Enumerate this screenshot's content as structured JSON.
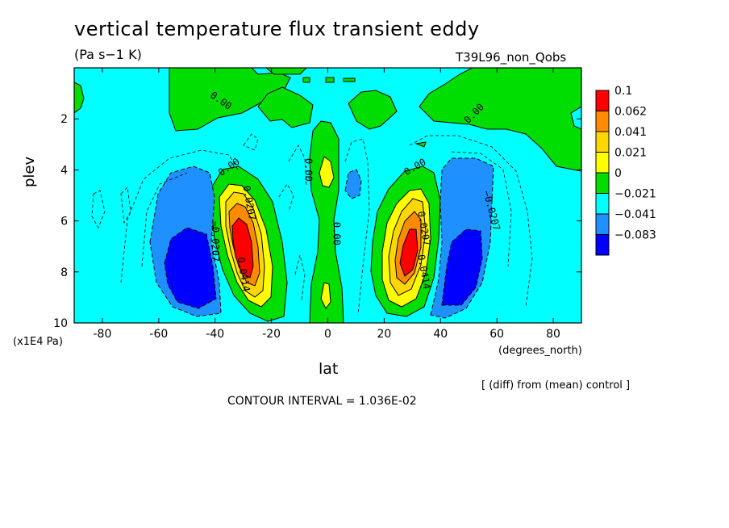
{
  "title": "vertical temperature flux transient eddy",
  "units": "(Pa s−1 K)",
  "run_id": "T39L96_non_Qobs",
  "y_scale_note": "(x1E4 Pa)",
  "x_units": "(degrees_north)",
  "diff_note": "[ (diff) from (mean) control ]",
  "contour_interval": "CONTOUR INTERVAL = 1.036E-02",
  "chart_data": {
    "type": "contour",
    "xlabel": "lat",
    "ylabel": "plev",
    "xlim": [
      -90,
      90
    ],
    "ylim": [
      10,
      0
    ],
    "x_ticks": [
      -80,
      -60,
      -40,
      -20,
      0,
      20,
      40,
      60,
      80
    ],
    "y_ticks": [
      2,
      4,
      6,
      8,
      10
    ],
    "legend": {
      "placement": "right",
      "levels": [
        "0.1",
        "0.062",
        "0.041",
        "0.021",
        "0",
        "−0.021",
        "−0.041",
        "−0.083"
      ],
      "colors": [
        "#ff0000",
        "#ff8c00",
        "#ffd700",
        "#ffff00",
        "#00dd00",
        "#00ffff",
        "#1e90ff",
        "#0000ff"
      ]
    },
    "contour_labels": [
      {
        "text": "0.00",
        "lat": -38,
        "p": 1.3,
        "angle": 35
      },
      {
        "text": "0.00",
        "lat": 52,
        "p": 1.8,
        "angle": -45
      },
      {
        "text": "0.00",
        "lat": -35,
        "p": 3.9,
        "angle": -35
      },
      {
        "text": "0.00",
        "lat": 31,
        "p": 3.9,
        "angle": -30
      },
      {
        "text": "0.00",
        "lat": -7,
        "p": 4.0,
        "angle": 90
      },
      {
        "text": "0.00",
        "lat": 3,
        "p": 6.5,
        "angle": 90
      },
      {
        "text": "0.0207",
        "lat": -28,
        "p": 5.3,
        "angle": 80
      },
      {
        "text": "0.0207",
        "lat": 34,
        "p": 6.3,
        "angle": 80
      },
      {
        "text": "−0.0207",
        "lat": -40,
        "p": 6.8,
        "angle": 90
      },
      {
        "text": "−0.0207",
        "lat": 58,
        "p": 5.6,
        "angle": 75
      },
      {
        "text": "0.0414",
        "lat": -30,
        "p": 8.1,
        "angle": 80
      },
      {
        "text": "0.0414",
        "lat": 34,
        "p": 8.0,
        "angle": 80
      }
    ],
    "features": [
      {
        "sign": "positive",
        "lat": -30,
        "p": 7.0,
        "peak": 0.1
      },
      {
        "sign": "positive",
        "lat": 31,
        "p": 7.0,
        "peak": 0.1
      },
      {
        "sign": "positive",
        "lat": -1,
        "p": 4.0,
        "peak": 0.03
      },
      {
        "sign": "positive",
        "lat": -1,
        "p": 8.9,
        "peak": 0.03
      },
      {
        "sign": "negative",
        "lat": -47,
        "p": 8.0,
        "peak": -0.083
      },
      {
        "sign": "negative",
        "lat": 48,
        "p": 8.0,
        "peak": -0.083
      }
    ]
  }
}
